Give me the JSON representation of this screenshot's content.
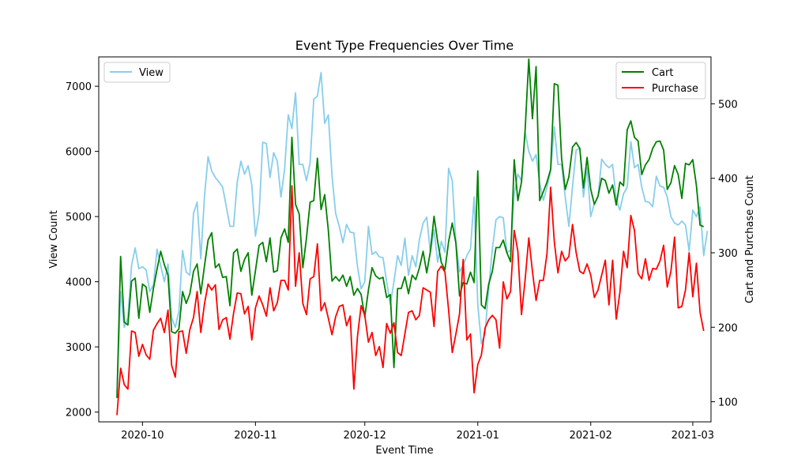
{
  "chart_data": {
    "type": "line",
    "title": "Event Type Frequencies Over Time",
    "xlabel": "Event Time",
    "ylabel_left": "View Count",
    "ylabel_right": "Cart and Purchase Count",
    "x_ticks": [
      "2020-10",
      "2020-11",
      "2020-12",
      "2021-01",
      "2021-02",
      "2021-03"
    ],
    "x_tick_dates": [
      "2020-10-01",
      "2020-11-01",
      "2020-12-01",
      "2021-01-01",
      "2021-02-01",
      "2021-03-01"
    ],
    "x_range": [
      "2020-09-19",
      "2021-03-06"
    ],
    "x_start": "2020-09-24",
    "y_left_range": [
      1850,
      7450
    ],
    "y_left_ticks": [
      2000,
      3000,
      4000,
      5000,
      6000,
      7000
    ],
    "y_right_range": [
      73,
      563
    ],
    "y_right_ticks": [
      100,
      200,
      300,
      400,
      500
    ],
    "grid": false,
    "legends": [
      {
        "placement": "top-left",
        "entries": [
          "View"
        ]
      },
      {
        "placement": "top-right",
        "entries": [
          "Cart",
          "Purchase"
        ]
      }
    ],
    "series": [
      {
        "name": "View",
        "axis": "left",
        "color": "#87ceeb",
        "values": [
          2300,
          3850,
          3300,
          3450,
          4250,
          4520,
          4200,
          4230,
          4180,
          3850,
          3950,
          4500,
          4250,
          4000,
          4270,
          3450,
          3300,
          3550,
          4480,
          4150,
          4100,
          5050,
          5220,
          4350,
          5300,
          5920,
          5700,
          5600,
          5530,
          5450,
          5150,
          4850,
          4850,
          5530,
          5850,
          5650,
          5780,
          5480,
          4700,
          5050,
          6140,
          6120,
          5600,
          5980,
          5850,
          5300,
          5730,
          6560,
          6350,
          6900,
          5800,
          5800,
          5550,
          5830,
          6800,
          6850,
          7210,
          6430,
          6560,
          5630,
          5050,
          4850,
          4600,
          4880,
          4760,
          4750,
          4230,
          3890,
          4000,
          4850,
          4420,
          4460,
          4380,
          4370,
          4000,
          3650,
          4000,
          4400,
          4250,
          4670,
          4100,
          4400,
          4230,
          4650,
          4900,
          4990,
          4450,
          4800,
          4300,
          4620,
          4450,
          5740,
          5550,
          4600,
          4150,
          4250,
          4400,
          4500,
          5300,
          3650,
          3050,
          3200,
          3900,
          4500,
          4950,
          5000,
          4980,
          4450,
          4480,
          5350,
          5650,
          5550,
          6300,
          6000,
          5850,
          5950,
          5500,
          5250,
          5450,
          5700,
          6380,
          5800,
          5800,
          5300,
          4850,
          5460,
          6020,
          6050,
          5300,
          5750,
          5000,
          5200,
          5300,
          5880,
          5800,
          5750,
          5800,
          5250,
          5100,
          5350,
          5450,
          6150,
          5750,
          5800,
          5450,
          5230,
          5220,
          5150,
          5620,
          5470,
          5450,
          5300,
          5000,
          4900,
          4870,
          4930,
          4870,
          4470,
          5100,
          5000,
          5150,
          4400,
          4780
        ]
      },
      {
        "name": "Cart",
        "axis": "right",
        "color": "#008000",
        "values": [
          105,
          295,
          207,
          203,
          262,
          266,
          212,
          258,
          254,
          220,
          252,
          278,
          302,
          284,
          270,
          194,
          192,
          198,
          248,
          232,
          245,
          275,
          285,
          245,
          282,
          317,
          327,
          280,
          285,
          267,
          268,
          229,
          300,
          305,
          275,
          291,
          300,
          243,
          276,
          310,
          314,
          288,
          320,
          274,
          276,
          320,
          332,
          314,
          455,
          365,
          352,
          280,
          320,
          368,
          370,
          427,
          358,
          378,
          330,
          262,
          268,
          262,
          270,
          255,
          268,
          243,
          252,
          244,
          214,
          250,
          280,
          269,
          265,
          267,
          240,
          244,
          146,
          252,
          252,
          268,
          245,
          270,
          264,
          280,
          302,
          273,
          302,
          349,
          315,
          287,
          277,
          315,
          340,
          313,
          242,
          260,
          258,
          274,
          260,
          410,
          230,
          225,
          258,
          275,
          307,
          307,
          317,
          300,
          288,
          425,
          370,
          395,
          465,
          560,
          480,
          550,
          370,
          382,
          395,
          412,
          527,
          525,
          427,
          385,
          402,
          442,
          448,
          440,
          387,
          428,
          385,
          365,
          376,
          400,
          397,
          380,
          391,
          364,
          395,
          390,
          465,
          477,
          455,
          450,
          405,
          418,
          425,
          440,
          449,
          450,
          438,
          385,
          394,
          417,
          405,
          373,
          420,
          418,
          425,
          390,
          337,
          335
        ]
      },
      {
        "name": "Purchase",
        "axis": "right",
        "color": "#ff0000",
        "values": [
          82,
          145,
          123,
          117,
          195,
          193,
          161,
          177,
          163,
          157,
          196,
          205,
          212,
          193,
          223,
          149,
          133,
          194,
          195,
          165,
          197,
          213,
          248,
          193,
          231,
          258,
          250,
          257,
          197,
          210,
          213,
          184,
          219,
          246,
          245,
          218,
          228,
          183,
          226,
          242,
          230,
          215,
          253,
          222,
          233,
          263,
          263,
          250,
          390,
          255,
          300,
          232,
          217,
          265,
          268,
          312,
          222,
          233,
          212,
          190,
          214,
          228,
          230,
          202,
          215,
          117,
          188,
          229,
          216,
          180,
          193,
          162,
          174,
          146,
          205,
          192,
          206,
          166,
          162,
          191,
          220,
          222,
          210,
          216,
          253,
          250,
          247,
          201,
          275,
          282,
          274,
          223,
          166,
          191,
          218,
          291,
          183,
          191,
          112,
          150,
          163,
          199,
          210,
          216,
          210,
          172,
          261,
          238,
          248,
          330,
          302,
          217,
          264,
          320,
          275,
          236,
          263,
          263,
          299,
          388,
          315,
          273,
          302,
          289,
          295,
          338,
          300,
          275,
          272,
          285,
          270,
          240,
          250,
          270,
          290,
          230,
          290,
          211,
          247,
          302,
          280,
          350,
          330,
          272,
          265,
          292,
          263,
          279,
          278,
          289,
          310,
          254,
          275,
          321,
          226,
          228,
          250,
          300,
          241,
          286,
          220,
          195
        ]
      }
    ]
  }
}
